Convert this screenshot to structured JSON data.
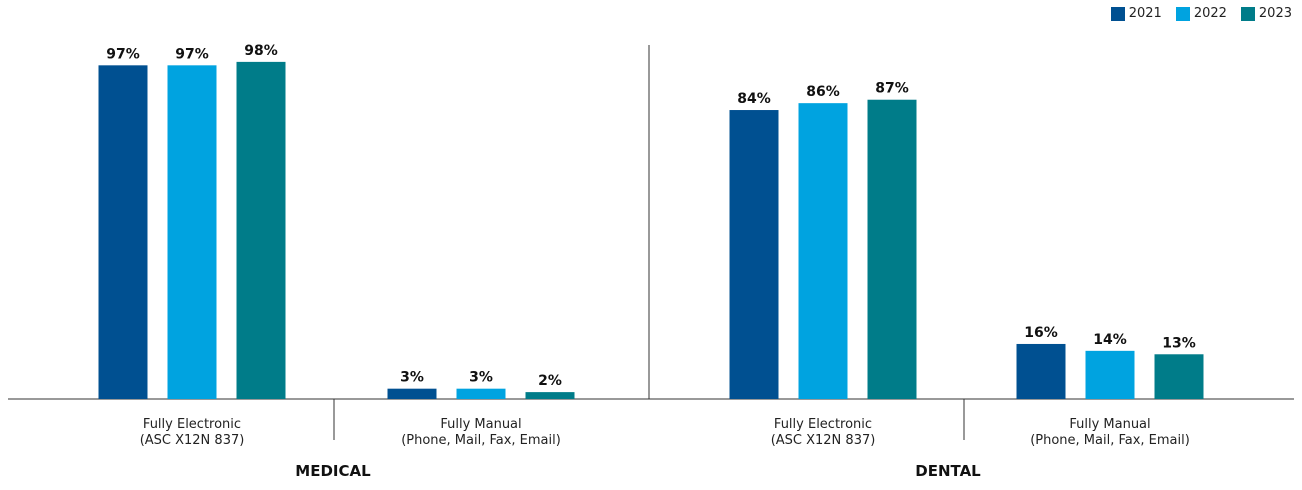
{
  "chart_data": {
    "type": "bar",
    "series": [
      {
        "name": "2021",
        "color": "#005091"
      },
      {
        "name": "2022",
        "color": "#00a3e0"
      },
      {
        "name": "2023",
        "color": "#007c89"
      }
    ],
    "groups": [
      {
        "name": "MEDICAL",
        "categories": [
          {
            "label_line1": "Fully Electronic",
            "label_line2": "(ASC X12N 837)",
            "values": [
              97,
              97,
              98
            ],
            "value_labels": [
              "97%",
              "97%",
              "98%"
            ]
          },
          {
            "label_line1": "Fully Manual",
            "label_line2": "(Phone, Mail, Fax, Email)",
            "values": [
              3,
              3,
              2
            ],
            "value_labels": [
              "3%",
              "3%",
              "2%"
            ]
          }
        ]
      },
      {
        "name": "DENTAL",
        "categories": [
          {
            "label_line1": "Fully Electronic",
            "label_line2": "(ASC X12N 837)",
            "values": [
              84,
              86,
              87
            ],
            "value_labels": [
              "84%",
              "86%",
              "87%"
            ]
          },
          {
            "label_line1": "Fully Manual",
            "label_line2": "(Phone, Mail, Fax, Email)",
            "values": [
              16,
              14,
              13
            ],
            "value_labels": [
              "16%",
              "14%",
              "13%"
            ]
          }
        ]
      }
    ],
    "ylim": [
      0,
      100
    ],
    "grid": false,
    "legend_position": "top-right"
  }
}
